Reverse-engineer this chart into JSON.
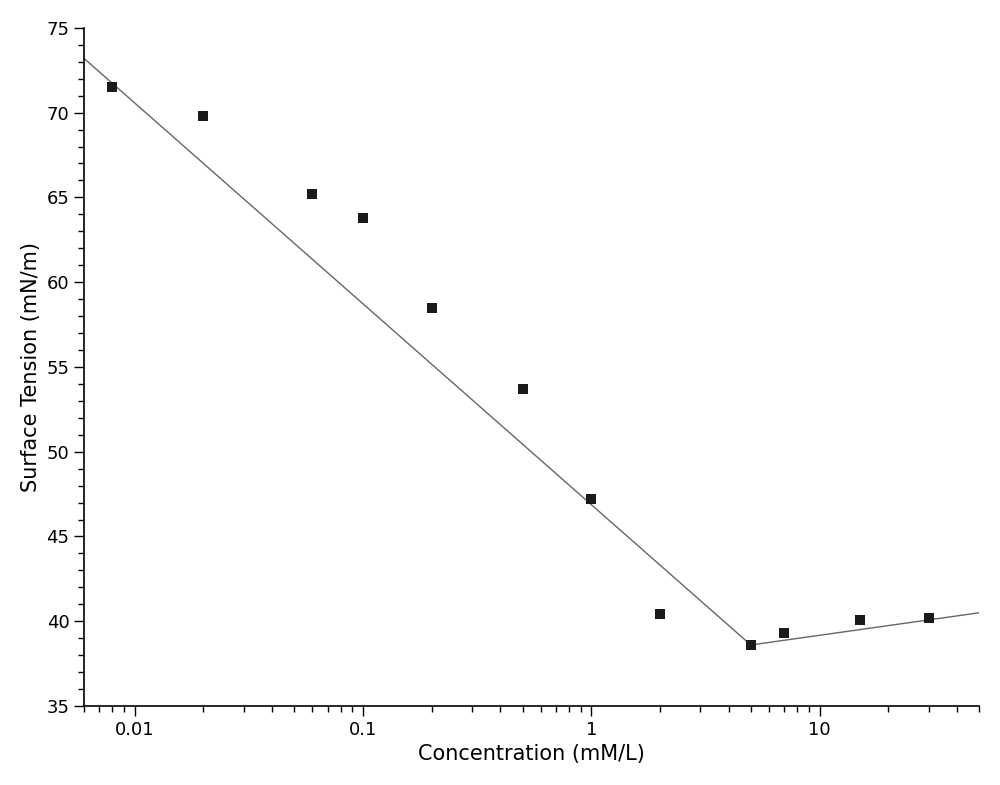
{
  "x_data": [
    0.008,
    0.02,
    0.06,
    0.1,
    0.2,
    0.5,
    1.0,
    2.0,
    5.0,
    7.0,
    15.0,
    30.0
  ],
  "y_data": [
    71.5,
    69.8,
    65.2,
    63.8,
    58.5,
    53.7,
    47.2,
    40.4,
    38.6,
    39.3,
    40.1,
    40.2
  ],
  "line1_x": [
    0.006,
    5.0
  ],
  "line1_y": [
    73.2,
    38.6
  ],
  "line2_x": [
    5.0,
    50.0
  ],
  "line2_y": [
    38.6,
    40.5
  ],
  "xlabel": "Concentration (mM/L)",
  "ylabel": "Surface Tension (mN/m)",
  "xlim": [
    0.006,
    50
  ],
  "ylim": [
    35,
    75
  ],
  "yticks": [
    35,
    40,
    45,
    50,
    55,
    60,
    65,
    70,
    75
  ],
  "marker_color": "#1a1a1a",
  "line_color": "#666666",
  "background_color": "#ffffff",
  "xlabel_fontsize": 15,
  "ylabel_fontsize": 15,
  "tick_fontsize": 13
}
